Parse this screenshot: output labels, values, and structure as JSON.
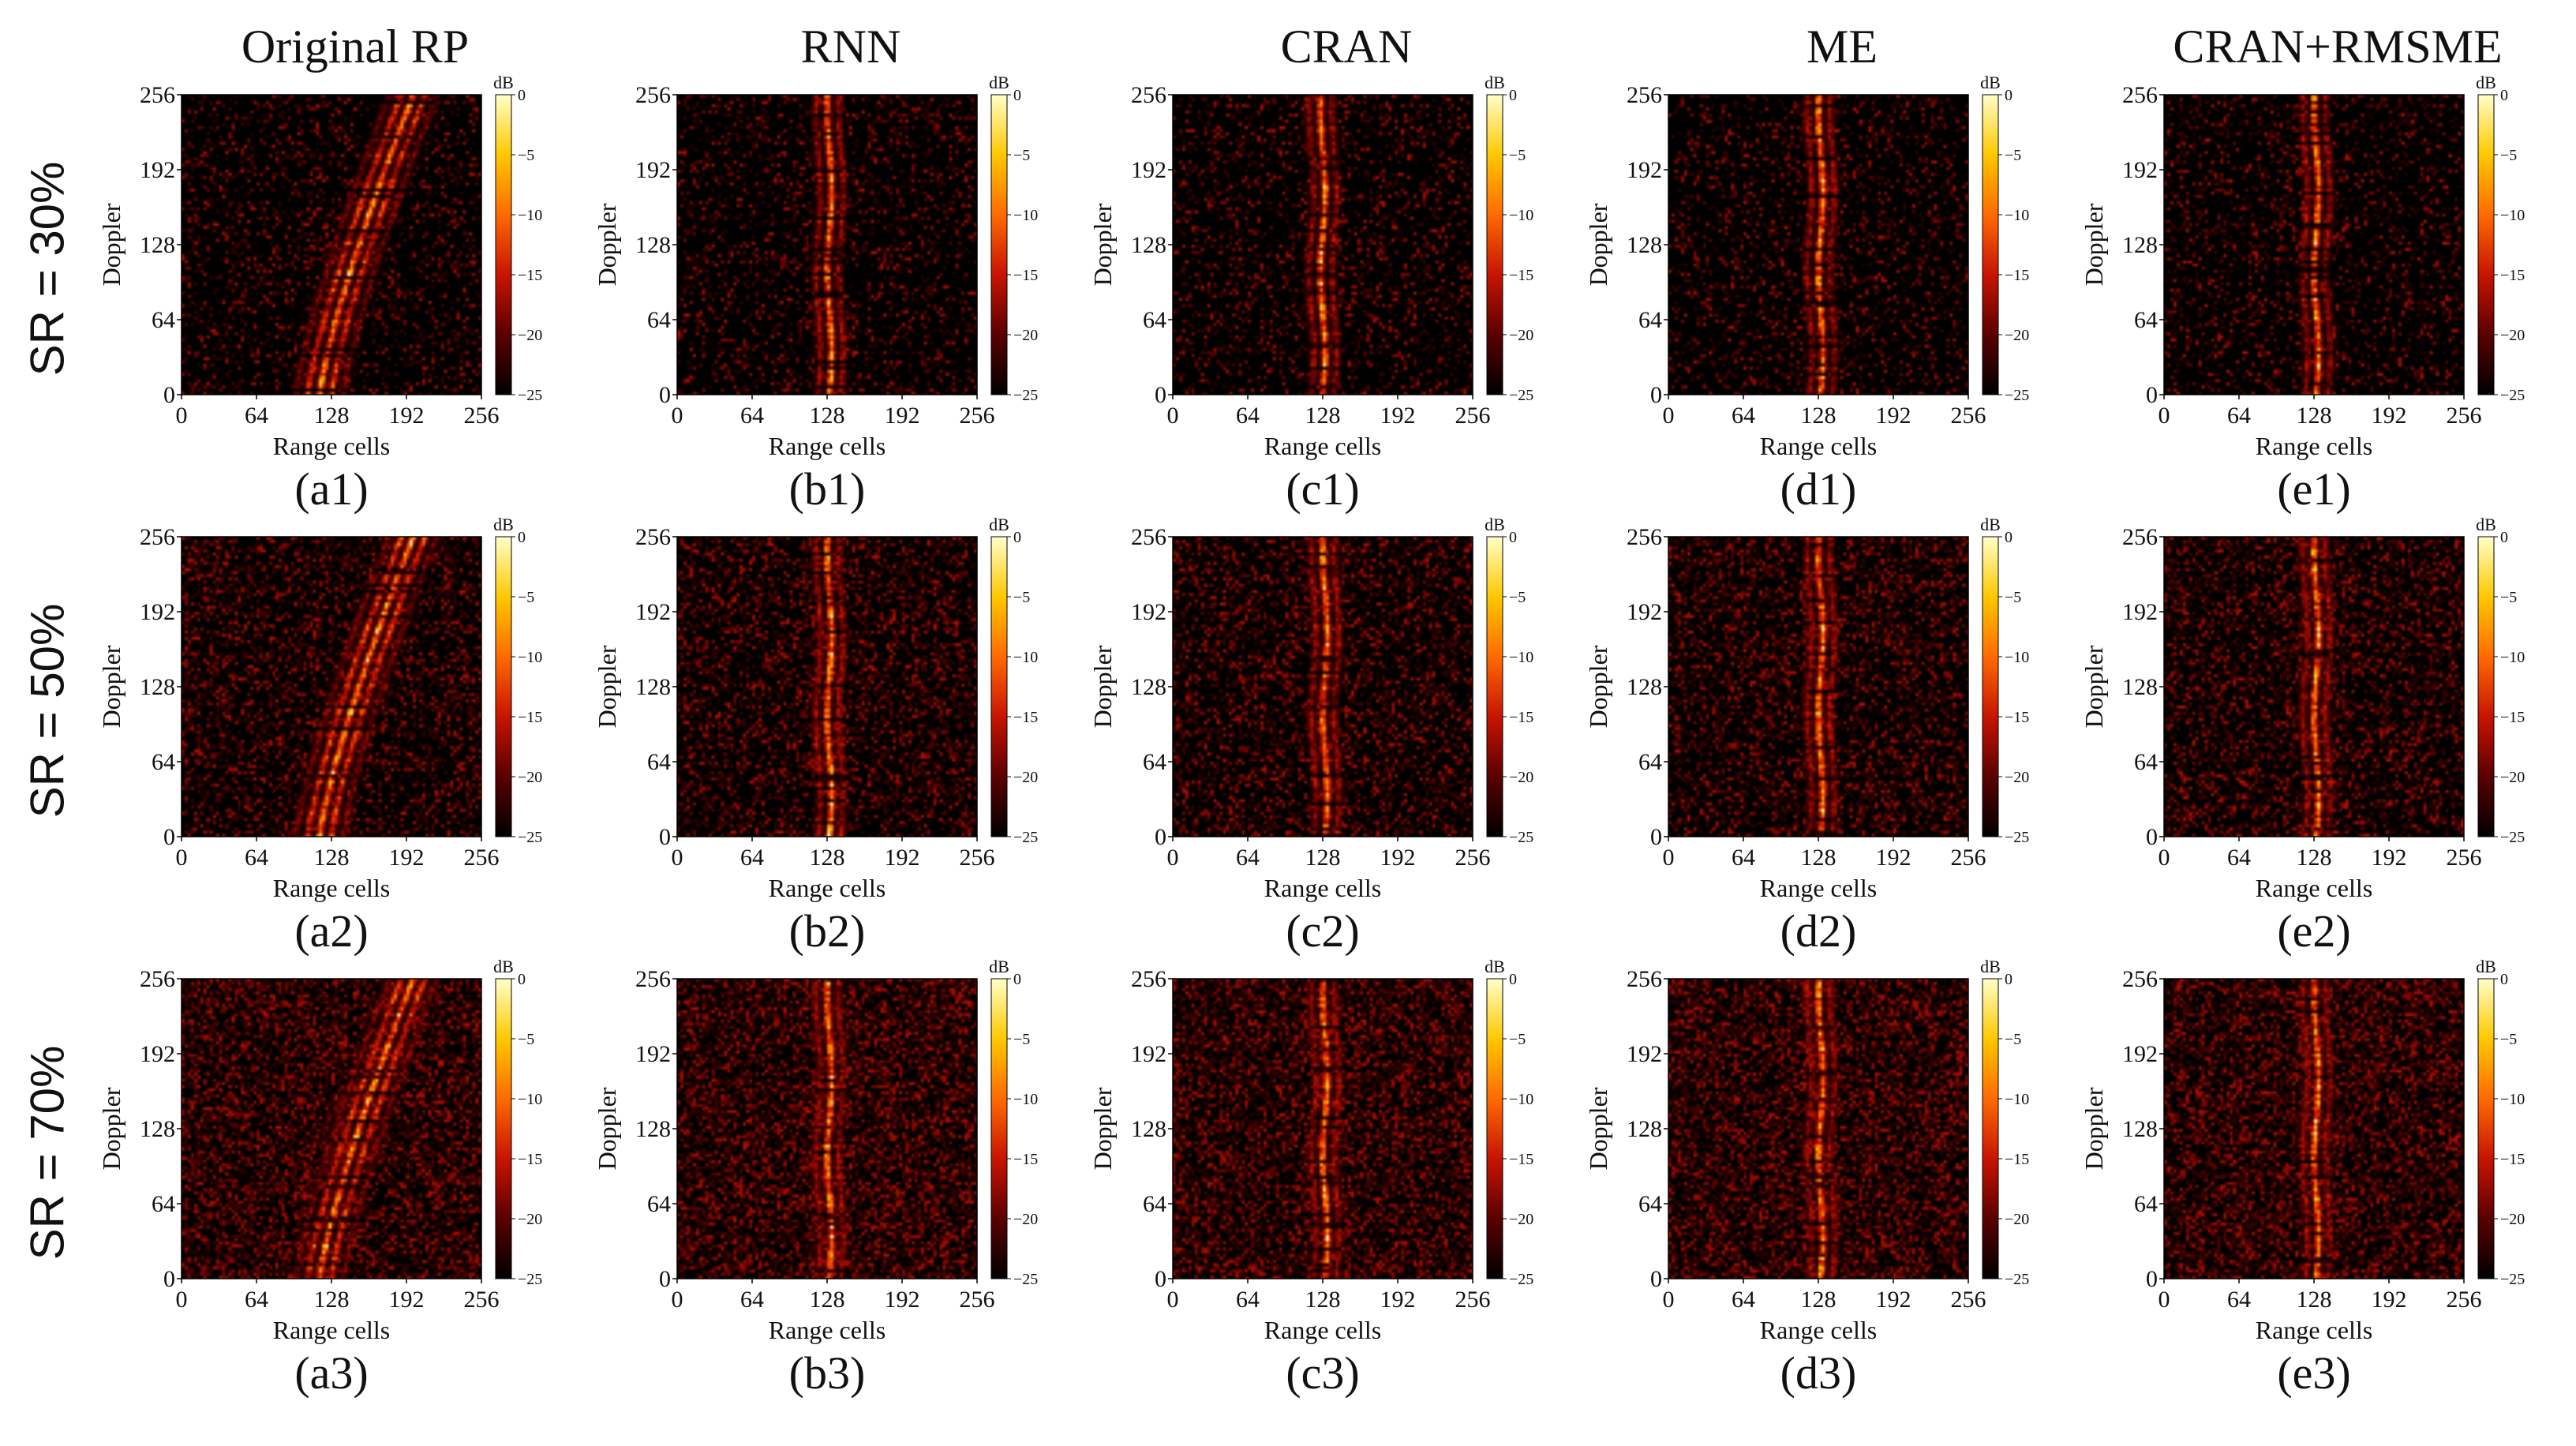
{
  "figure": {
    "columns": [
      {
        "key": "a",
        "title": "Original RP"
      },
      {
        "key": "b",
        "title": "RNN"
      },
      {
        "key": "c",
        "title": "CRAN"
      },
      {
        "key": "d",
        "title": "ME"
      },
      {
        "key": "e",
        "title": "CRAN+RMSME"
      }
    ],
    "rows": [
      {
        "key": "1",
        "label": "SR = 30%"
      },
      {
        "key": "2",
        "label": "SR = 50%"
      },
      {
        "key": "3",
        "label": "SR = 70%"
      }
    ],
    "colors": {
      "background": "#000000",
      "colormap": [
        "#000000",
        "#5a0000",
        "#c81400",
        "#ff6a00",
        "#ffc800",
        "#ffffc8"
      ],
      "text": "#111111"
    }
  },
  "chart_data": {
    "type": "heatmap",
    "xlabel": "Range cells",
    "ylabel": "Doppler",
    "xticks": [
      "0",
      "64",
      "128",
      "192",
      "256"
    ],
    "yticks": [
      "0",
      "64",
      "128",
      "192",
      "256"
    ],
    "xlim": [
      0,
      256
    ],
    "ylim": [
      0,
      256
    ],
    "colorbar": {
      "label": "dB",
      "ticks": [
        "0",
        "−5",
        "−10",
        "−15",
        "−20",
        "−25"
      ],
      "range": [
        -25,
        0
      ]
    },
    "panels": [
      {
        "label": "(a1)",
        "method": "Original RP",
        "sampling_rate": "30%",
        "pattern": "curved",
        "track_start_range": 118,
        "track_end_range": 198,
        "mask_density": 0.3
      },
      {
        "label": "(b1)",
        "method": "RNN",
        "sampling_rate": "30%",
        "pattern": "vertical",
        "track_center_range": 130,
        "mask_density": 0.3
      },
      {
        "label": "(c1)",
        "method": "CRAN",
        "sampling_rate": "30%",
        "pattern": "vertical",
        "track_center_range": 128,
        "mask_density": 0.3
      },
      {
        "label": "(d1)",
        "method": "ME",
        "sampling_rate": "30%",
        "pattern": "vertical",
        "track_center_range": 130,
        "mask_density": 0.3
      },
      {
        "label": "(e1)",
        "method": "CRAN+RMSME",
        "sampling_rate": "30%",
        "pattern": "vertical",
        "track_center_range": 130,
        "mask_density": 0.3
      },
      {
        "label": "(a2)",
        "method": "Original RP",
        "sampling_rate": "50%",
        "pattern": "curved",
        "track_start_range": 118,
        "track_end_range": 198,
        "mask_density": 0.5
      },
      {
        "label": "(b2)",
        "method": "RNN",
        "sampling_rate": "50%",
        "pattern": "vertical",
        "track_center_range": 130,
        "mask_density": 0.5
      },
      {
        "label": "(c2)",
        "method": "CRAN",
        "sampling_rate": "50%",
        "pattern": "vertical",
        "track_center_range": 130,
        "mask_density": 0.5
      },
      {
        "label": "(d2)",
        "method": "ME",
        "sampling_rate": "50%",
        "pattern": "vertical",
        "track_center_range": 130,
        "mask_density": 0.5
      },
      {
        "label": "(e2)",
        "method": "CRAN+RMSME",
        "sampling_rate": "50%",
        "pattern": "vertical",
        "track_center_range": 130,
        "mask_density": 0.5
      },
      {
        "label": "(a3)",
        "method": "Original RP",
        "sampling_rate": "70%",
        "pattern": "curved",
        "track_start_range": 118,
        "track_end_range": 198,
        "mask_density": 0.7
      },
      {
        "label": "(b3)",
        "method": "RNN",
        "sampling_rate": "70%",
        "pattern": "vertical",
        "track_center_range": 130,
        "mask_density": 0.7
      },
      {
        "label": "(c3)",
        "method": "CRAN",
        "sampling_rate": "70%",
        "pattern": "vertical",
        "track_center_range": 130,
        "mask_density": 0.7
      },
      {
        "label": "(d3)",
        "method": "ME",
        "sampling_rate": "70%",
        "pattern": "vertical",
        "track_center_range": 130,
        "mask_density": 0.7
      },
      {
        "label": "(e3)",
        "method": "CRAN+RMSME",
        "sampling_rate": "70%",
        "pattern": "vertical",
        "track_center_range": 130,
        "mask_density": 0.7
      }
    ]
  }
}
